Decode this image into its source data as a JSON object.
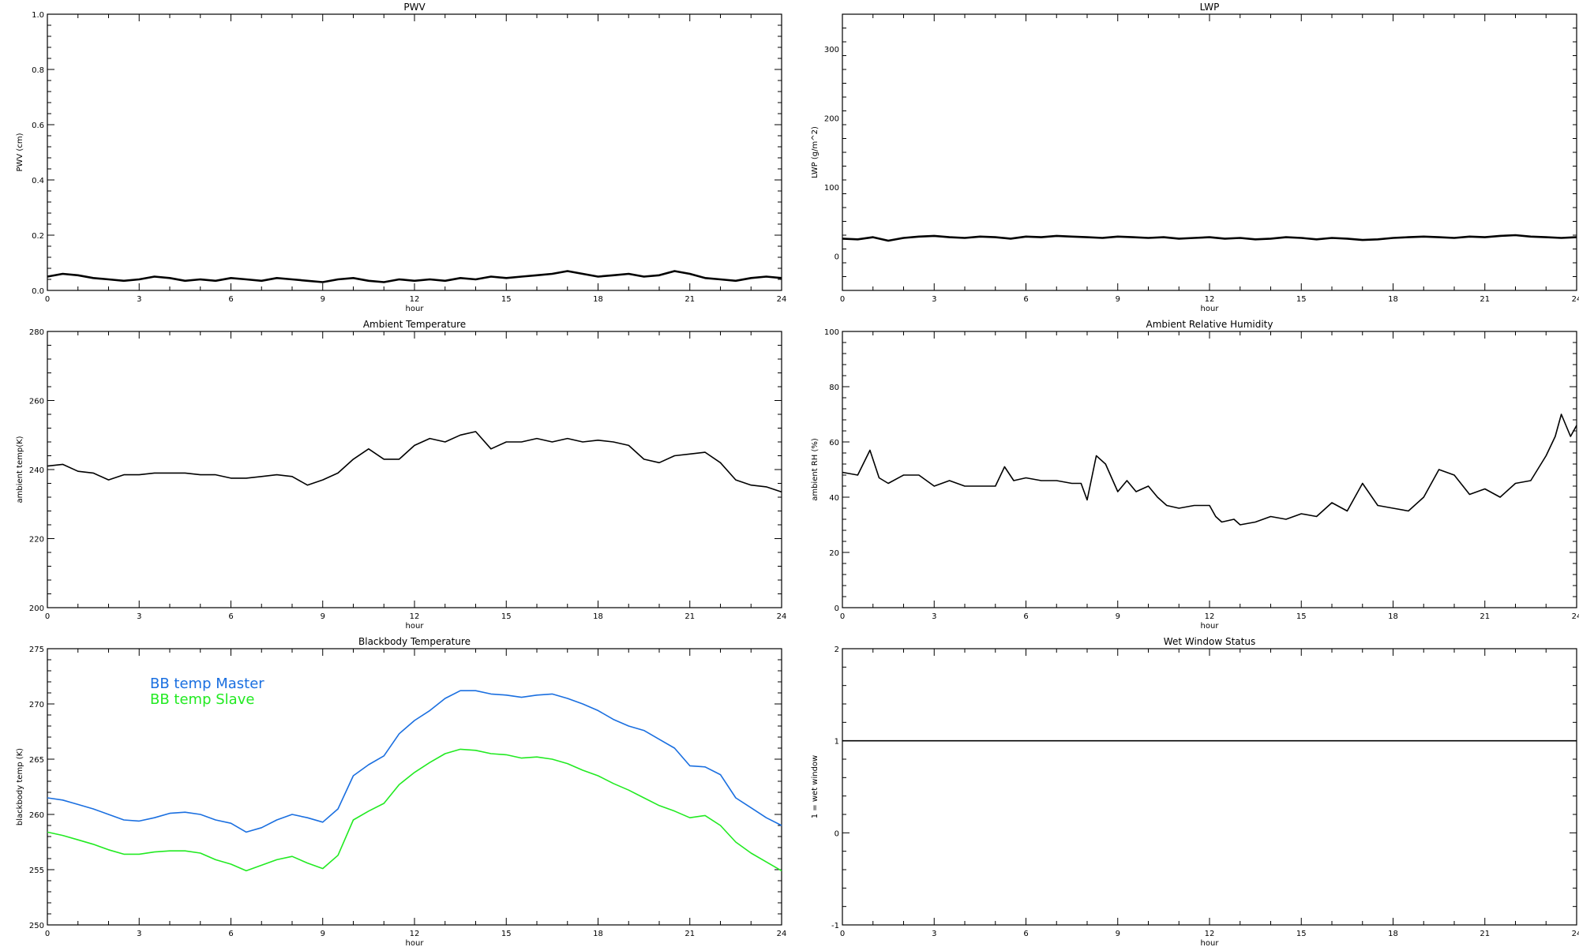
{
  "chart_data": [
    {
      "id": "pwv",
      "type": "line",
      "title": "PWV",
      "xlabel": "hour",
      "ylabel": "PWV (cm)",
      "xlim": [
        0,
        24
      ],
      "ylim": [
        0,
        1
      ],
      "xticks": [
        "0",
        "3",
        "6",
        "9",
        "12",
        "15",
        "18",
        "21",
        "24"
      ],
      "yticks": [
        "0.0",
        "0.2",
        "0.4",
        "0.6",
        "0.8",
        "1.0"
      ],
      "series": [
        {
          "color": "#000000",
          "x": [
            0,
            0.5,
            1,
            1.5,
            2,
            2.5,
            3,
            3.5,
            4,
            4.5,
            5,
            5.5,
            6,
            6.5,
            7,
            7.5,
            8,
            8.5,
            9,
            9.5,
            10,
            10.5,
            11,
            11.5,
            12,
            12.5,
            13,
            13.5,
            14,
            14.5,
            15,
            15.5,
            16,
            16.5,
            17,
            17.5,
            18,
            18.5,
            19,
            19.5,
            20,
            20.5,
            21,
            21.5,
            22,
            22.5,
            23,
            23.5,
            24
          ],
          "y": [
            0.05,
            0.06,
            0.055,
            0.045,
            0.04,
            0.035,
            0.04,
            0.05,
            0.045,
            0.035,
            0.04,
            0.035,
            0.045,
            0.04,
            0.035,
            0.045,
            0.04,
            0.035,
            0.03,
            0.04,
            0.045,
            0.035,
            0.03,
            0.04,
            0.035,
            0.04,
            0.035,
            0.045,
            0.04,
            0.05,
            0.045,
            0.05,
            0.055,
            0.06,
            0.07,
            0.06,
            0.05,
            0.055,
            0.06,
            0.05,
            0.055,
            0.07,
            0.06,
            0.045,
            0.04,
            0.035,
            0.045,
            0.05,
            0.045
          ]
        }
      ]
    },
    {
      "id": "lwp",
      "type": "line",
      "title": "LWP",
      "xlabel": "hour",
      "ylabel": "LWP (g/m^2)",
      "xlim": [
        0,
        24
      ],
      "ylim": [
        -50,
        350
      ],
      "xticks": [
        "0",
        "3",
        "6",
        "9",
        "12",
        "15",
        "18",
        "21",
        "24"
      ],
      "yticks": [
        "0",
        "100",
        "200",
        "300"
      ],
      "series": [
        {
          "color": "#000000",
          "x": [
            0,
            0.5,
            1,
            1.5,
            2,
            2.5,
            3,
            3.5,
            4,
            4.5,
            5,
            5.5,
            6,
            6.5,
            7,
            7.5,
            8,
            8.5,
            9,
            9.5,
            10,
            10.5,
            11,
            11.5,
            12,
            12.5,
            13,
            13.5,
            14,
            14.5,
            15,
            15.5,
            16,
            16.5,
            17,
            17.5,
            18,
            18.5,
            19,
            19.5,
            20,
            20.5,
            21,
            21.5,
            22,
            22.5,
            23,
            23.5,
            24
          ],
          "y": [
            25,
            24,
            27,
            22,
            26,
            28,
            29,
            27,
            26,
            28,
            27,
            25,
            28,
            27,
            29,
            28,
            27,
            26,
            28,
            27,
            26,
            27,
            25,
            26,
            27,
            25,
            26,
            24,
            25,
            27,
            26,
            24,
            26,
            25,
            23,
            24,
            26,
            27,
            28,
            27,
            26,
            28,
            27,
            29,
            30,
            28,
            27,
            26,
            27
          ]
        }
      ]
    },
    {
      "id": "ambient_temp",
      "type": "line",
      "title": "Ambient Temperature",
      "xlabel": "hour",
      "ylabel": "ambient temp(K)",
      "xlim": [
        0,
        24
      ],
      "ylim": [
        200,
        280
      ],
      "xticks": [
        "0",
        "3",
        "6",
        "9",
        "12",
        "15",
        "18",
        "21",
        "24"
      ],
      "yticks": [
        "200",
        "220",
        "240",
        "260",
        "280"
      ],
      "series": [
        {
          "color": "#000000",
          "x": [
            0,
            0.5,
            1,
            1.5,
            2,
            2.5,
            3,
            3.5,
            4,
            4.5,
            5,
            5.5,
            6,
            6.5,
            7,
            7.5,
            8,
            8.5,
            9,
            9.5,
            10,
            10.5,
            11,
            11.5,
            12,
            12.5,
            13,
            13.5,
            14,
            14.5,
            15,
            15.5,
            16,
            16.5,
            17,
            17.5,
            18,
            18.5,
            19,
            19.5,
            20,
            20.5,
            21,
            21.5,
            22,
            22.5,
            23,
            23.5,
            24
          ],
          "y": [
            241,
            241.5,
            239.5,
            239,
            237,
            238.5,
            238.5,
            239,
            239,
            239,
            238.5,
            238.5,
            237.5,
            237.5,
            238,
            238.5,
            238,
            235.5,
            237,
            239,
            243,
            246,
            243,
            243,
            247,
            249,
            248,
            250,
            251,
            246,
            248,
            248,
            249,
            248,
            249,
            248,
            248.5,
            248,
            247,
            243,
            242,
            244,
            244.5,
            245,
            242,
            237,
            235.5,
            235,
            233.5
          ]
        }
      ]
    },
    {
      "id": "ambient_rh",
      "type": "line",
      "title": "Ambient Relative Humidity",
      "xlabel": "hour",
      "ylabel": "ambient RH (%)",
      "xlim": [
        0,
        24
      ],
      "ylim": [
        0,
        100
      ],
      "xticks": [
        "0",
        "3",
        "6",
        "9",
        "12",
        "15",
        "18",
        "21",
        "24"
      ],
      "yticks": [
        "0",
        "20",
        "40",
        "60",
        "80",
        "100"
      ],
      "series": [
        {
          "color": "#000000",
          "x": [
            0,
            0.5,
            0.9,
            1.2,
            1.5,
            2,
            2.5,
            3,
            3.5,
            4,
            4.5,
            5,
            5.3,
            5.6,
            6,
            6.5,
            7,
            7.5,
            7.8,
            8,
            8.3,
            8.6,
            9,
            9.3,
            9.6,
            10,
            10.3,
            10.6,
            11,
            11.5,
            12,
            12.2,
            12.4,
            12.8,
            13,
            13.5,
            14,
            14.5,
            15,
            15.5,
            16,
            16.5,
            17,
            17.5,
            18,
            18.5,
            19,
            19.5,
            20,
            20.5,
            21,
            21.5,
            22,
            22.5,
            23,
            23.3,
            23.5,
            23.8,
            24
          ],
          "y": [
            49,
            48,
            57,
            47,
            45,
            48,
            48,
            44,
            46,
            44,
            44,
            44,
            51,
            46,
            47,
            46,
            46,
            45,
            45,
            39,
            55,
            52,
            42,
            46,
            42,
            44,
            40,
            37,
            36,
            37,
            37,
            33,
            31,
            32,
            30,
            31,
            33,
            32,
            34,
            33,
            38,
            35,
            45,
            37,
            36,
            35,
            40,
            50,
            48,
            41,
            43,
            40,
            45,
            46,
            55,
            62,
            70,
            62,
            66
          ]
        }
      ]
    },
    {
      "id": "bb_temp",
      "type": "line",
      "title": "Blackbody Temperature",
      "xlabel": "hour",
      "ylabel": "blackbody temp (K)",
      "xlim": [
        0,
        24
      ],
      "ylim": [
        250,
        275
      ],
      "xticks": [
        "0",
        "3",
        "6",
        "9",
        "12",
        "15",
        "18",
        "21",
        "24"
      ],
      "yticks": [
        "250",
        "255",
        "260",
        "265",
        "270",
        "275"
      ],
      "series": [
        {
          "name": "BB temp Master",
          "color": "#1a6fe0",
          "x": [
            0,
            0.5,
            1,
            1.5,
            2,
            2.5,
            3,
            3.5,
            4,
            4.5,
            5,
            5.5,
            6,
            6.5,
            7,
            7.5,
            8,
            8.5,
            9,
            9.5,
            10,
            10.5,
            11,
            11.5,
            12,
            12.5,
            13,
            13.5,
            14,
            14.5,
            15,
            15.5,
            16,
            16.5,
            17,
            17.5,
            18,
            18.5,
            19,
            19.5,
            20,
            20.5,
            21,
            21.5,
            22,
            22.5,
            23,
            23.5,
            24
          ],
          "y": [
            261.5,
            261.3,
            260.9,
            260.5,
            260,
            259.5,
            259.4,
            259.7,
            260.1,
            260.2,
            260,
            259.5,
            259.2,
            258.4,
            258.8,
            259.5,
            260,
            259.7,
            259.3,
            260.5,
            263.5,
            264.5,
            265.3,
            267.3,
            268.5,
            269.4,
            270.5,
            271.2,
            271.2,
            270.9,
            270.8,
            270.6,
            270.8,
            270.9,
            270.5,
            270,
            269.4,
            268.6,
            268,
            267.6,
            266.8,
            266,
            264.4,
            264.3,
            263.6,
            261.5,
            260.6,
            259.7,
            259
          ]
        },
        {
          "name": "BB temp Slave",
          "color": "#22ea22",
          "x": [
            0,
            0.5,
            1,
            1.5,
            2,
            2.5,
            3,
            3.5,
            4,
            4.5,
            5,
            5.5,
            6,
            6.5,
            7,
            7.5,
            8,
            8.5,
            9,
            9.5,
            10,
            10.5,
            11,
            11.5,
            12,
            12.5,
            13,
            13.5,
            14,
            14.5,
            15,
            15.5,
            16,
            16.5,
            17,
            17.5,
            18,
            18.5,
            19,
            19.5,
            20,
            20.5,
            21,
            21.5,
            22,
            22.5,
            23,
            23.5,
            24
          ],
          "y": [
            258.4,
            258.1,
            257.7,
            257.3,
            256.8,
            256.4,
            256.4,
            256.6,
            256.7,
            256.7,
            256.5,
            255.9,
            255.5,
            254.9,
            255.4,
            255.9,
            256.2,
            255.6,
            255.1,
            256.3,
            259.5,
            260.3,
            261,
            262.7,
            263.8,
            264.7,
            265.5,
            265.9,
            265.8,
            265.5,
            265.4,
            265.1,
            265.2,
            265,
            264.6,
            264,
            263.5,
            262.8,
            262.2,
            261.5,
            260.8,
            260.3,
            259.7,
            259.9,
            259,
            257.5,
            256.5,
            255.7,
            254.9
          ]
        }
      ]
    },
    {
      "id": "wet_window",
      "type": "line",
      "title": "Wet Window Status",
      "xlabel": "hour",
      "ylabel": "1 = wet window",
      "xlim": [
        0,
        24
      ],
      "ylim": [
        -1,
        2
      ],
      "xticks": [
        "0",
        "3",
        "6",
        "9",
        "12",
        "15",
        "18",
        "21",
        "24"
      ],
      "yticks": [
        "-1",
        "0",
        "1",
        "2"
      ],
      "series": [
        {
          "color": "#000000",
          "x": [
            0,
            24
          ],
          "y": [
            1,
            1
          ]
        }
      ]
    }
  ]
}
